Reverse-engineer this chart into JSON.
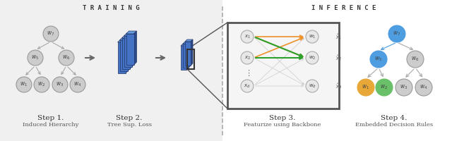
{
  "bg_color": "#f0f0f0",
  "white": "#ffffff",
  "gray_node_fill": "#cccccc",
  "gray_node_edge": "#999999",
  "blue_node": "#4d9de0",
  "orange_node": "#e8a838",
  "green_node": "#6abf69",
  "blue_3d_front": "#4472c4",
  "blue_3d_top": "#6699dd",
  "blue_3d_right": "#2a4a8a",
  "arrow_gray": "#999999",
  "arrow_orange": "#f0922b",
  "arrow_green": "#2ea02e",
  "arrow_blue": "#4d9de0",
  "dashed_color": "#aaaaaa",
  "training_label": "T R A I N I N G",
  "inference_label": "I N F E R E N C E",
  "step1_title": "Step 1.",
  "step1_sub": "Induced Hierarchy",
  "step2_title": "Step 2.",
  "step2_sub": "Tree Sup. Loss",
  "step3_title": "Step 3.",
  "step3_sub": "Featurize using Backbone",
  "step4_title": "Step 4.",
  "step4_sub": "Embedded Decision Rules"
}
